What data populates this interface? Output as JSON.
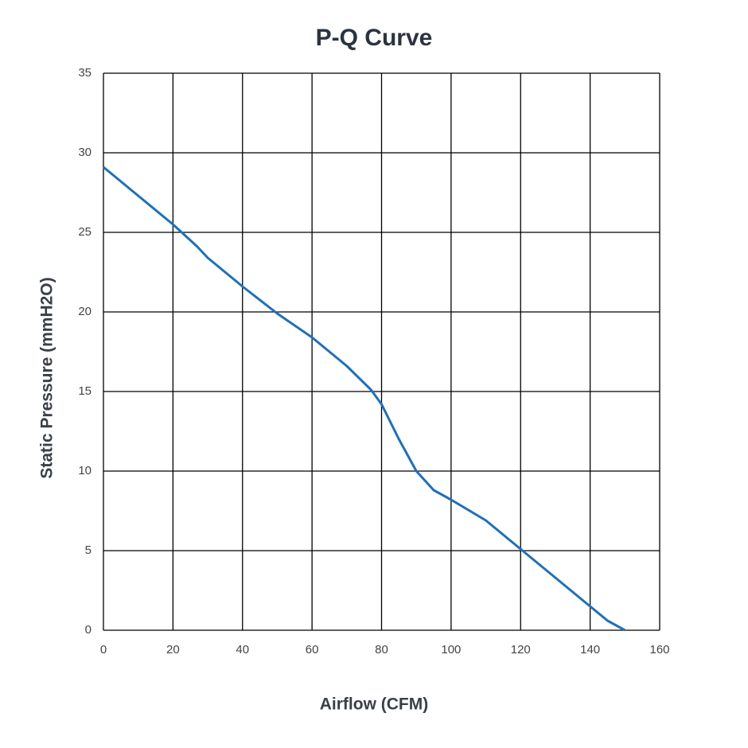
{
  "chart_data": {
    "type": "line",
    "title": "P-Q Curve",
    "x_label": "Airflow (CFM)",
    "y_label": "Static Pressure (mmH2O)",
    "x": [
      0,
      10,
      20,
      27,
      30,
      40,
      50,
      60,
      70,
      77,
      80,
      85,
      90,
      95,
      100,
      110,
      120,
      130,
      140,
      145,
      150
    ],
    "series": [
      {
        "name": "P-Q",
        "color": "#1f70b8",
        "values": [
          29.1,
          27.3,
          25.5,
          24.1,
          23.4,
          21.6,
          19.9,
          18.4,
          16.6,
          15.1,
          14.2,
          12.0,
          10.0,
          8.8,
          8.2,
          6.9,
          5.1,
          3.3,
          1.5,
          0.6,
          0
        ]
      }
    ],
    "xlim": [
      0,
      160
    ],
    "xticks": [
      0,
      20,
      40,
      60,
      80,
      100,
      120,
      140,
      160
    ],
    "ylim": [
      0,
      35
    ],
    "yticks": [
      0,
      5,
      10,
      15,
      20,
      25,
      30,
      35
    ],
    "grid": true
  }
}
